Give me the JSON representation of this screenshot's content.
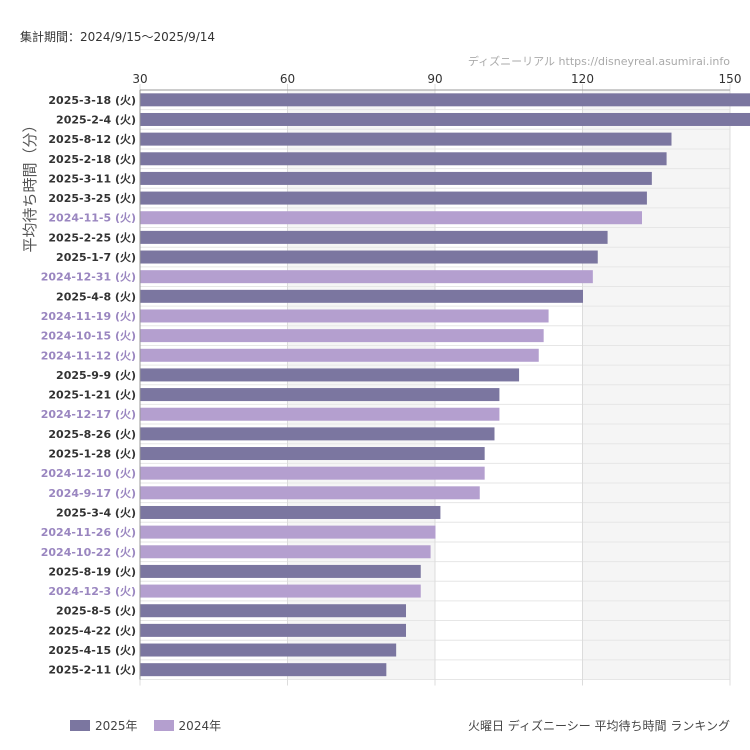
{
  "header": {
    "period": "集計期間：2024/9/15〜2025/9/14",
    "source": "ディズニーリアル https://disneyreal.asumirai.info"
  },
  "footer": {
    "title": "火曜日 ディズニーシー 平均待ち時間 ランキング"
  },
  "colors": {
    "y2025": "#7b76a0",
    "y2024": "#b49fcf",
    "label2025": "#333333",
    "label2024": "#9a86c0"
  },
  "chart_data": {
    "type": "bar",
    "orientation": "horizontal",
    "ylabel": "平均待ち時間（分）",
    "xlim": [
      30,
      150
    ],
    "xticks": [
      30,
      60,
      90,
      120,
      150
    ],
    "grid": true,
    "legend_position": "bottom-left",
    "series": [
      {
        "name": "2025年"
      },
      {
        "name": "2024年"
      }
    ],
    "bars": [
      {
        "label": "2025-3-18 (火)",
        "value": 155,
        "series": "2025年"
      },
      {
        "label": "2025-2-4 (火)",
        "value": 155,
        "series": "2025年"
      },
      {
        "label": "2025-8-12 (火)",
        "value": 138,
        "series": "2025年"
      },
      {
        "label": "2025-2-18 (火)",
        "value": 137,
        "series": "2025年"
      },
      {
        "label": "2025-3-11 (火)",
        "value": 134,
        "series": "2025年"
      },
      {
        "label": "2025-3-25 (火)",
        "value": 133,
        "series": "2025年"
      },
      {
        "label": "2024-11-5 (火)",
        "value": 132,
        "series": "2024年"
      },
      {
        "label": "2025-2-25 (火)",
        "value": 125,
        "series": "2025年"
      },
      {
        "label": "2025-1-7 (火)",
        "value": 123,
        "series": "2025年"
      },
      {
        "label": "2024-12-31 (火)",
        "value": 122,
        "series": "2024年"
      },
      {
        "label": "2025-4-8 (火)",
        "value": 120,
        "series": "2025年"
      },
      {
        "label": "2024-11-19 (火)",
        "value": 113,
        "series": "2024年"
      },
      {
        "label": "2024-10-15 (火)",
        "value": 112,
        "series": "2024年"
      },
      {
        "label": "2024-11-12 (火)",
        "value": 111,
        "series": "2024年"
      },
      {
        "label": "2025-9-9 (火)",
        "value": 107,
        "series": "2025年"
      },
      {
        "label": "2025-1-21 (火)",
        "value": 103,
        "series": "2025年"
      },
      {
        "label": "2024-12-17 (火)",
        "value": 103,
        "series": "2024年"
      },
      {
        "label": "2025-8-26 (火)",
        "value": 102,
        "series": "2025年"
      },
      {
        "label": "2025-1-28 (火)",
        "value": 100,
        "series": "2025年"
      },
      {
        "label": "2024-12-10 (火)",
        "value": 100,
        "series": "2024年"
      },
      {
        "label": "2024-9-17 (火)",
        "value": 99,
        "series": "2024年"
      },
      {
        "label": "2025-3-4 (火)",
        "value": 91,
        "series": "2025年"
      },
      {
        "label": "2024-11-26 (火)",
        "value": 90,
        "series": "2024年"
      },
      {
        "label": "2024-10-22 (火)",
        "value": 89,
        "series": "2024年"
      },
      {
        "label": "2025-8-19 (火)",
        "value": 87,
        "series": "2025年"
      },
      {
        "label": "2024-12-3 (火)",
        "value": 87,
        "series": "2024年"
      },
      {
        "label": "2025-8-5 (火)",
        "value": 84,
        "series": "2025年"
      },
      {
        "label": "2025-4-22 (火)",
        "value": 84,
        "series": "2025年"
      },
      {
        "label": "2025-4-15 (火)",
        "value": 82,
        "series": "2025年"
      },
      {
        "label": "2025-2-11 (火)",
        "value": 80,
        "series": "2025年"
      }
    ]
  }
}
